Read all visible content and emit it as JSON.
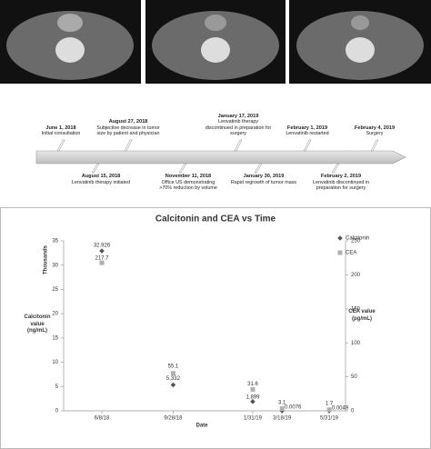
{
  "timeline": {
    "above": [
      {
        "date": "June 1, 2018",
        "text": "Initial consultation"
      },
      {
        "date": "August 27, 2018",
        "text": "Subjective decrease in tumor size by patient and physician"
      },
      {
        "date": "January 17, 2019",
        "text": "Lenvatinib therapy discontinued in preparation for surgery"
      },
      {
        "date": "February 1, 2019",
        "text": "Lenvatinib restarted"
      },
      {
        "date": "February 4, 2019",
        "text": "Surgery"
      }
    ],
    "below": [
      {
        "date": "August 15, 2018",
        "text": "Lenvatinib therapy initiated"
      },
      {
        "date": "November 11, 2018",
        "text": "Office US demonstrating >70% reduction by volume"
      },
      {
        "date": "January 30, 2019",
        "text": "Rapid regrowth of tumor mass"
      },
      {
        "date": "February 2, 2019",
        "text": "Lenvatinib discontinued in preparation for surgery"
      }
    ]
  },
  "chart_data": {
    "type": "scatter",
    "title": "Calcitonin and CEA vs Time",
    "x_label": "Date",
    "y_label": "Calcitonin value (ng/mL)",
    "y_unit_label": "Thousands",
    "y2_label": "CEA value (pg/mL)",
    "x": [
      "6/8/18",
      "9/28/18",
      "1/31/19",
      "3/18/19",
      "5/31/19"
    ],
    "ylim": [
      0,
      35
    ],
    "yticks": [
      0,
      5,
      10,
      15,
      20,
      25,
      30,
      35
    ],
    "y2lim": [
      0,
      250
    ],
    "y2ticks": [
      0,
      50,
      100,
      150,
      200,
      250
    ],
    "legend": "top-right",
    "series": [
      {
        "name": "Calcitonin",
        "color": "#555555",
        "marker": "diamond",
        "values": [
          32.926,
          5.332,
          1.899,
          0.0076,
          0.0049
        ]
      },
      {
        "name": "CEA",
        "color": "#b0b0b0",
        "marker": "square",
        "axis": "y2",
        "values": [
          217.7,
          55.1,
          31.6,
          3.1,
          1.7
        ]
      }
    ]
  }
}
